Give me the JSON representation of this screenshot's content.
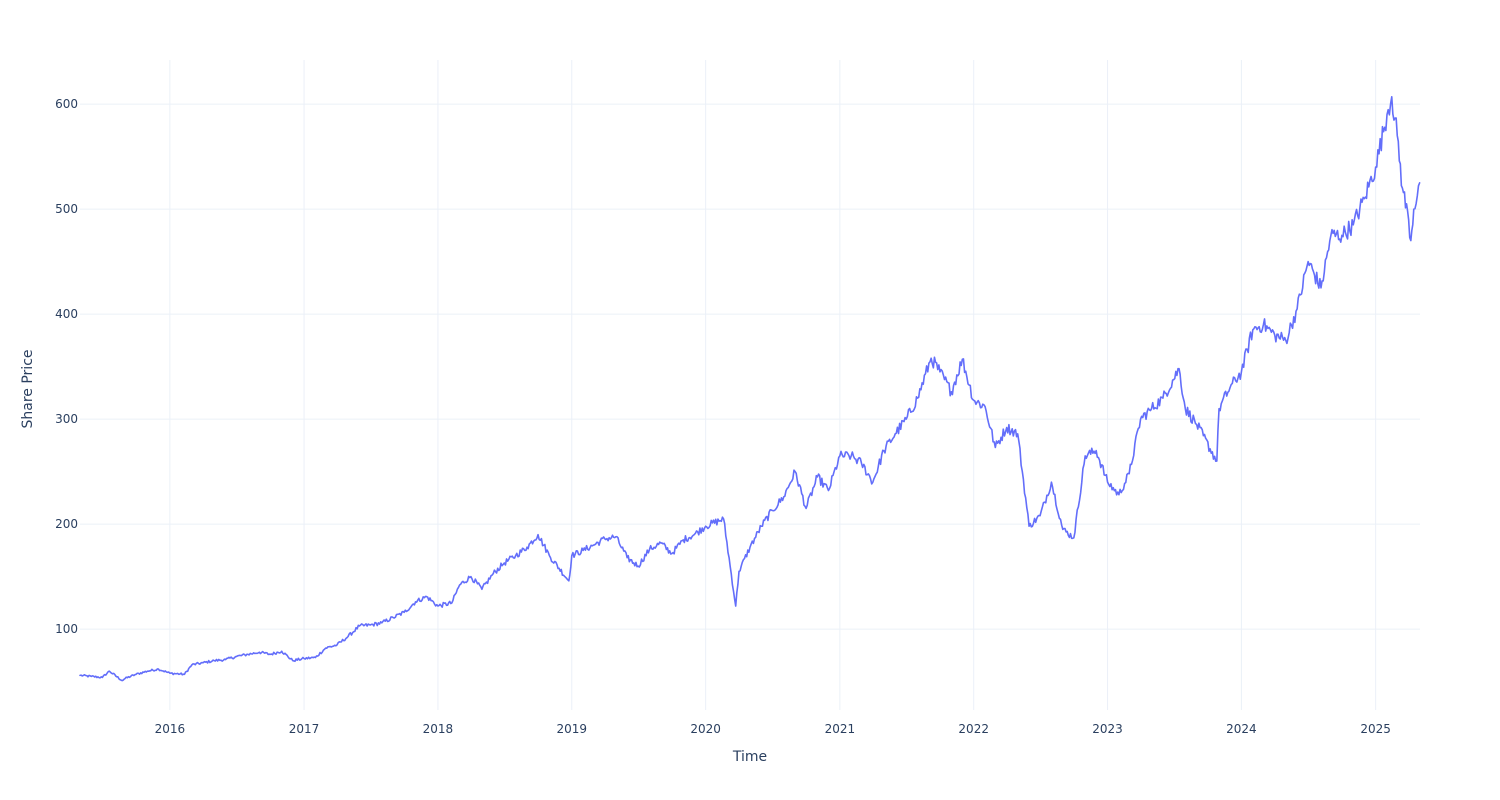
{
  "chart_data": {
    "type": "line",
    "title": "",
    "xlabel": "Time",
    "ylabel": "Share Price",
    "xlim": [
      "2015-05-01",
      "2025-05-02"
    ],
    "ylim": [
      23,
      642
    ],
    "x_tick_labels": [
      "2016",
      "2017",
      "2018",
      "2019",
      "2020",
      "2021",
      "2022",
      "2023",
      "2024",
      "2025"
    ],
    "y_tick_values": [
      100,
      200,
      300,
      400,
      500,
      600
    ],
    "grid": true,
    "legend": "none",
    "line_color": "#636efa",
    "series": [
      {
        "x": [
          "2015-05-01",
          "2015-06-01",
          "2015-07-01",
          "2015-07-20",
          "2015-08-24",
          "2015-09-01",
          "2015-10-01",
          "2015-11-01",
          "2015-12-01",
          "2016-01-01",
          "2016-02-10",
          "2016-03-01",
          "2016-04-01",
          "2016-05-01",
          "2016-06-01",
          "2016-07-01",
          "2016-08-01",
          "2016-09-01",
          "2016-10-01",
          "2016-11-01",
          "2016-12-01",
          "2017-01-01",
          "2017-02-01",
          "2017-03-01",
          "2017-04-01",
          "2017-05-01",
          "2017-06-01",
          "2017-07-01",
          "2017-08-01",
          "2017-09-01",
          "2017-10-01",
          "2017-11-01",
          "2017-12-01",
          "2018-01-01",
          "2018-02-08",
          "2018-03-01",
          "2018-04-01",
          "2018-05-01",
          "2018-06-01",
          "2018-07-01",
          "2018-08-01",
          "2018-09-01",
          "2018-10-01",
          "2018-11-01",
          "2018-12-24",
          "2019-01-01",
          "2019-02-01",
          "2019-03-01",
          "2019-04-01",
          "2019-05-01",
          "2019-06-01",
          "2019-07-01",
          "2019-08-01",
          "2019-09-01",
          "2019-10-01",
          "2019-11-01",
          "2019-12-01",
          "2020-01-01",
          "2020-02-19",
          "2020-03-23",
          "2020-04-01",
          "2020-05-01",
          "2020-06-01",
          "2020-07-01",
          "2020-08-01",
          "2020-09-01",
          "2020-10-01",
          "2020-11-01",
          "2020-12-01",
          "2021-01-01",
          "2021-02-01",
          "2021-03-01",
          "2021-04-01",
          "2021-05-01",
          "2021-06-01",
          "2021-07-01",
          "2021-08-01",
          "2021-09-07",
          "2021-10-01",
          "2021-11-01",
          "2021-12-01",
          "2022-01-01",
          "2022-02-01",
          "2022-03-01",
          "2022-04-01",
          "2022-05-01",
          "2022-06-01",
          "2022-07-01",
          "2022-08-01",
          "2022-09-01",
          "2022-10-01",
          "2022-11-01",
          "2022-12-01",
          "2023-01-01",
          "2023-02-01",
          "2023-03-01",
          "2023-04-01",
          "2023-05-01",
          "2023-06-01",
          "2023-07-15",
          "2023-08-01",
          "2023-09-01",
          "2023-10-26",
          "2023-11-01",
          "2023-12-01",
          "2024-01-01",
          "2024-02-01",
          "2024-03-01",
          "2024-04-01",
          "2024-05-01",
          "2024-06-01",
          "2024-07-01",
          "2024-08-05",
          "2024-09-01",
          "2024-10-01",
          "2024-11-01",
          "2024-12-01",
          "2025-01-01",
          "2025-02-01",
          "2025-02-14",
          "2025-03-01",
          "2025-03-15",
          "2025-04-01",
          "2025-04-07",
          "2025-04-15",
          "2025-05-01"
        ],
        "y": [
          56,
          55,
          54,
          60,
          51,
          53,
          57,
          60,
          62,
          58,
          57,
          66,
          68,
          70,
          71,
          74,
          76,
          78,
          76,
          79,
          70,
          72,
          73,
          82,
          85,
          93,
          103,
          104,
          106,
          111,
          116,
          126,
          131,
          122,
          125,
          142,
          150,
          138,
          153,
          163,
          170,
          178,
          190,
          170,
          146,
          170,
          175,
          180,
          186,
          188,
          168,
          160,
          176,
          182,
          172,
          185,
          190,
          198,
          205,
          122,
          155,
          178,
          198,
          213,
          226,
          250,
          215,
          245,
          232,
          265,
          265,
          258,
          240,
          270,
          286,
          300,
          320,
          358,
          345,
          326,
          357,
          318,
          312,
          273,
          292,
          286,
          198,
          208,
          240,
          195,
          187,
          265,
          270,
          240,
          228,
          248,
          300,
          310,
          320,
          348,
          310,
          295,
          260,
          310,
          330,
          345,
          385,
          390,
          380,
          375,
          405,
          450,
          425,
          475,
          475,
          485,
          510,
          540,
          590,
          607,
          570,
          520,
          490,
          470,
          500,
          525
        ]
      }
    ]
  }
}
